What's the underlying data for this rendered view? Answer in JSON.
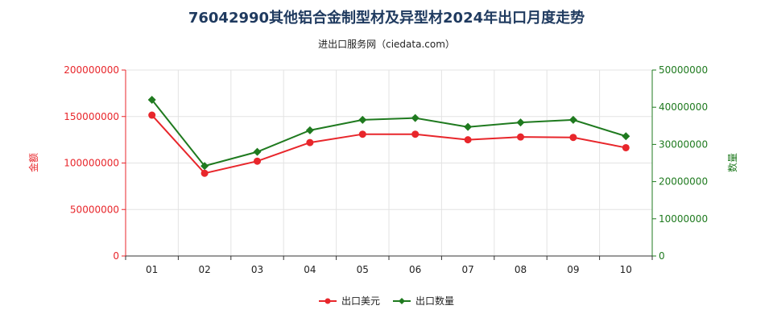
{
  "chart_data": {
    "type": "line",
    "title": "76042990其他铝合金制型材及异型材2024年出口月度走势",
    "subtitle": "进出口服务网（ciedata.com）",
    "categories": [
      "01",
      "02",
      "03",
      "04",
      "05",
      "06",
      "07",
      "08",
      "09",
      "10"
    ],
    "y_left": {
      "label": "金额",
      "range": [
        0,
        200000000
      ],
      "ticks": [
        "0",
        "50000000",
        "100000000",
        "150000000",
        "200000000"
      ],
      "color": "#e8262b"
    },
    "y_right": {
      "label": "数量",
      "range": [
        0,
        50000000
      ],
      "ticks": [
        "0",
        "10000000",
        "20000000",
        "30000000",
        "40000000",
        "50000000"
      ],
      "color": "#1f7a1f"
    },
    "series": [
      {
        "name": "出口美元",
        "axis": "left",
        "color": "#e8262b",
        "marker": "circle",
        "values": [
          151500000,
          89000000,
          102000000,
          122000000,
          131000000,
          131000000,
          125000000,
          128000000,
          127500000,
          116500000
        ]
      },
      {
        "name": "出口数量",
        "axis": "right",
        "color": "#1f7a1f",
        "marker": "diamond",
        "values": [
          42000000,
          24200000,
          28000000,
          33800000,
          36600000,
          37100000,
          34700000,
          35900000,
          36600000,
          32200000
        ]
      }
    ],
    "legend_position": "bottom-center",
    "grid": true
  }
}
